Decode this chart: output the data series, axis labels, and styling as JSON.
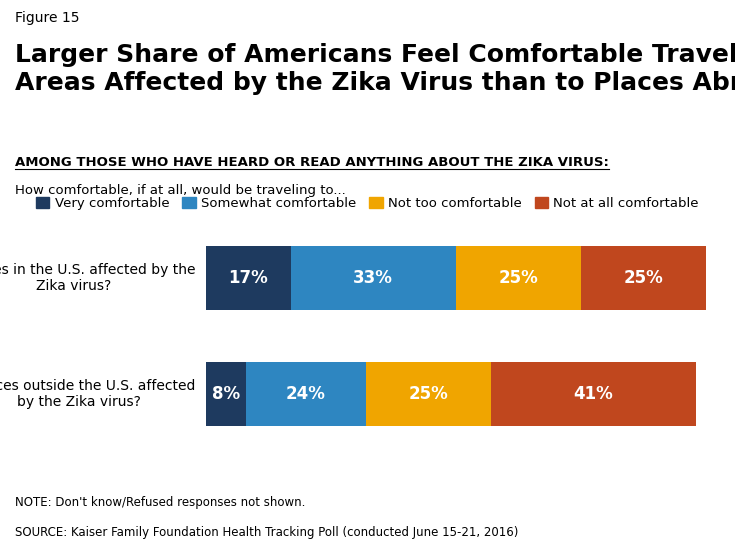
{
  "figure_label": "Figure 15",
  "title": "Larger Share of Americans Feel Comfortable Traveling to U.S.\nAreas Affected by the Zika Virus than to Places Abroad",
  "subtitle_bold": "AMONG THOSE WHO HAVE HEARD OR READ ANYTHING ABOUT THE ZIKA VIRUS:",
  "subtitle_regular": " How comfortable, if at all, would be\ntraveling to...",
  "categories": [
    "...places in the U.S. affected by the\nZika virus?",
    "...places outside the U.S. affected\nby the Zika virus?"
  ],
  "series": [
    {
      "label": "Very comfortable",
      "color": "#1e3a5f",
      "values": [
        17,
        8
      ]
    },
    {
      "label": "Somewhat comfortable",
      "color": "#2e86c1",
      "values": [
        33,
        24
      ]
    },
    {
      "label": "Not too comfortable",
      "color": "#f0a500",
      "values": [
        25,
        25
      ]
    },
    {
      "label": "Not at all comfortable",
      "color": "#c0471e",
      "values": [
        25,
        41
      ]
    }
  ],
  "bar_height": 0.55,
  "note": "NOTE: Don't know/Refused responses not shown.",
  "source": "SOURCE: Kaiser Family Foundation Health Tracking Poll (conducted June 15-21, 2016)",
  "background_color": "#ffffff",
  "text_color": "#000000",
  "bar_label_color": "#ffffff",
  "bar_label_fontsize": 12,
  "title_fontsize": 18,
  "figure_label_fontsize": 10,
  "subtitle_fontsize": 9.5,
  "legend_fontsize": 9.5,
  "note_fontsize": 8.5,
  "category_fontsize": 10,
  "logo_color": "#1e3a5f"
}
